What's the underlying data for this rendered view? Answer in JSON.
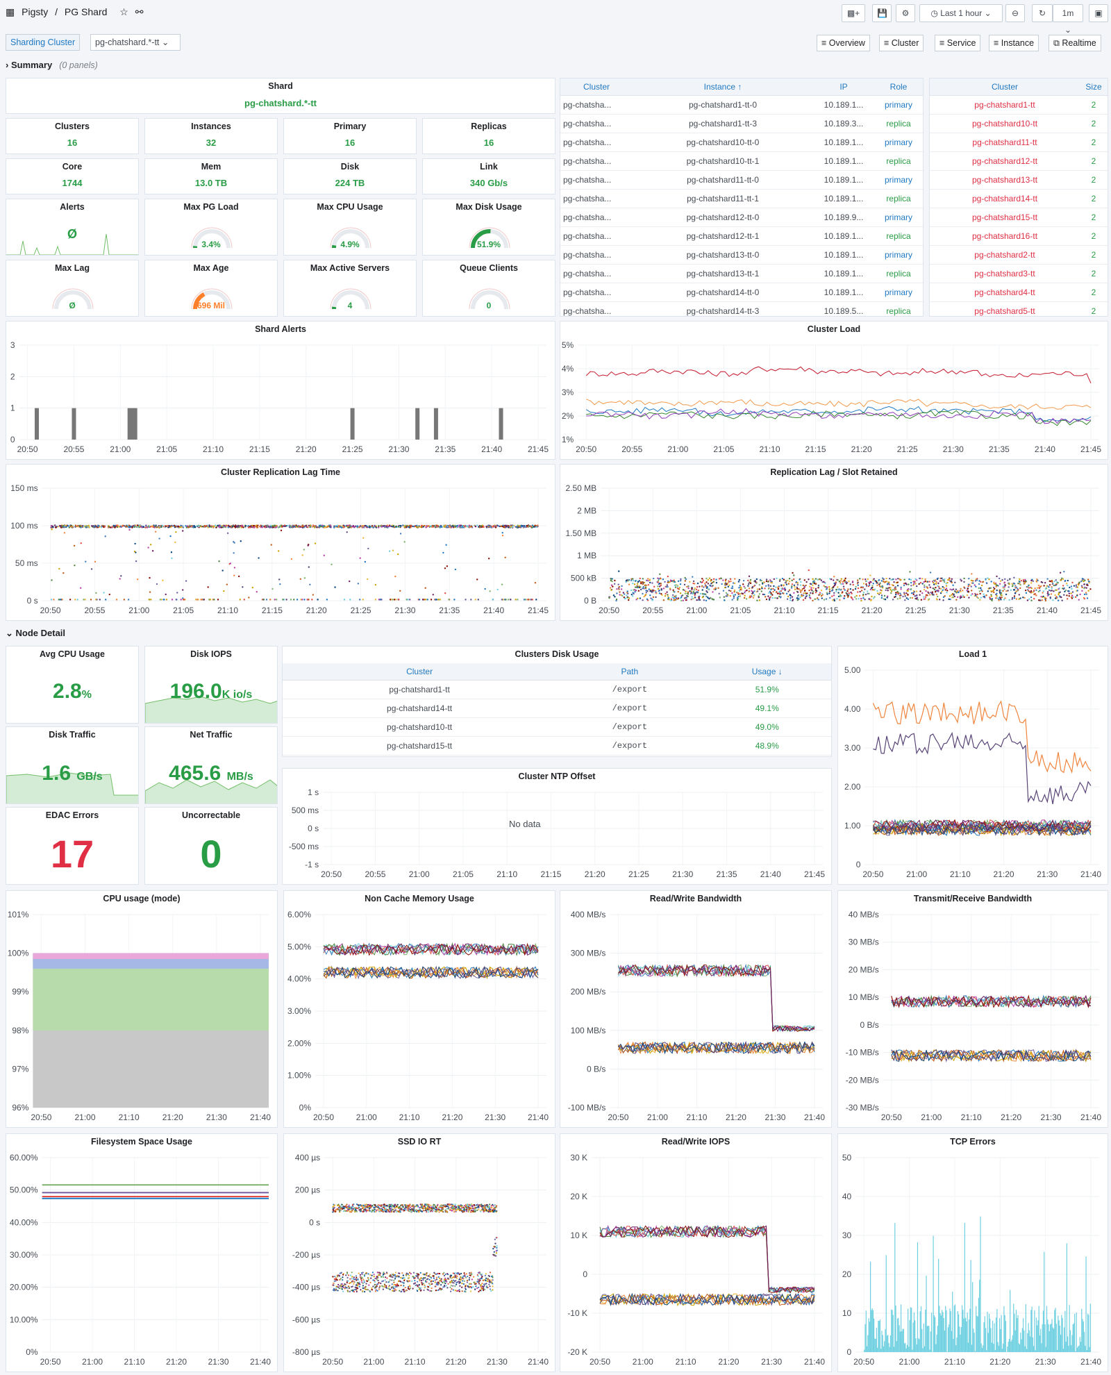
{
  "header": {
    "app": "Pigsty",
    "sep": "/",
    "dashboard": "PG Shard",
    "time_range": "Last 1 hour",
    "refresh": "1m"
  },
  "variables": {
    "label": "Sharding Cluster",
    "value": "pg-chatshard.*-tt"
  },
  "nav": [
    "Overview",
    "Cluster",
    "Service",
    "Instance",
    "Realtime"
  ],
  "rows": {
    "summary": "Summary",
    "summary_note": "(0 panels)",
    "node": "Node Detail"
  },
  "shard": {
    "title": "Shard",
    "value": "pg-chatshard.*-tt"
  },
  "stats": [
    {
      "title": "Clusters",
      "value": "16"
    },
    {
      "title": "Instances",
      "value": "32"
    },
    {
      "title": "Primary",
      "value": "16"
    },
    {
      "title": "Replicas",
      "value": "16"
    },
    {
      "title": "Core",
      "value": "1744"
    },
    {
      "title": "Mem",
      "value": "13.0 TB"
    },
    {
      "title": "Disk",
      "value": "224 TB"
    },
    {
      "title": "Link",
      "value": "340 Gb/s"
    }
  ],
  "gauges": [
    {
      "title": "Alerts",
      "value": "Ø",
      "level": 0
    },
    {
      "title": "Max PG Load",
      "value": "3.4%",
      "level": 0.034
    },
    {
      "title": "Max CPU Usage",
      "value": "4.9%",
      "level": 0.049
    },
    {
      "title": "Max Disk Usage",
      "value": "51.9%",
      "level": 0.519
    },
    {
      "title": "Max Lag",
      "value": "Ø",
      "level": 0
    },
    {
      "title": "Max Age",
      "value": "696 Mil",
      "level": 0.35
    },
    {
      "title": "Max Active Servers",
      "value": "4",
      "level": 0.04
    },
    {
      "title": "Queue Clients",
      "value": "0",
      "level": 0
    }
  ],
  "instances": {
    "headers": [
      "Cluster",
      "Instance ↑",
      "IP",
      "Role"
    ],
    "rows": [
      [
        "pg-chatsha...",
        "pg-chatshard1-tt-0",
        "10.189.1...",
        "primary"
      ],
      [
        "pg-chatsha...",
        "pg-chatshard1-tt-3",
        "10.189.3...",
        "replica"
      ],
      [
        "pg-chatsha...",
        "pg-chatshard10-tt-0",
        "10.189.1...",
        "primary"
      ],
      [
        "pg-chatsha...",
        "pg-chatshard10-tt-1",
        "10.189.1...",
        "replica"
      ],
      [
        "pg-chatsha...",
        "pg-chatshard11-tt-0",
        "10.189.1...",
        "primary"
      ],
      [
        "pg-chatsha...",
        "pg-chatshard11-tt-1",
        "10.189.1...",
        "replica"
      ],
      [
        "pg-chatsha...",
        "pg-chatshard12-tt-0",
        "10.189.9...",
        "primary"
      ],
      [
        "pg-chatsha...",
        "pg-chatshard12-tt-1",
        "10.189.1...",
        "replica"
      ],
      [
        "pg-chatsha...",
        "pg-chatshard13-tt-0",
        "10.189.1...",
        "primary"
      ],
      [
        "pg-chatsha...",
        "pg-chatshard13-tt-1",
        "10.189.1...",
        "replica"
      ],
      [
        "pg-chatsha...",
        "pg-chatshard14-tt-0",
        "10.189.1...",
        "primary"
      ],
      [
        "pg-chatsha...",
        "pg-chatshard14-tt-3",
        "10.189.5...",
        "replica"
      ]
    ]
  },
  "clusters": {
    "headers": [
      "Cluster",
      "Size"
    ],
    "rows": [
      [
        "pg-chatshard1-tt",
        "2"
      ],
      [
        "pg-chatshard10-tt",
        "2"
      ],
      [
        "pg-chatshard11-tt",
        "2"
      ],
      [
        "pg-chatshard12-tt",
        "2"
      ],
      [
        "pg-chatshard13-tt",
        "2"
      ],
      [
        "pg-chatshard14-tt",
        "2"
      ],
      [
        "pg-chatshard15-tt",
        "2"
      ],
      [
        "pg-chatshard16-tt",
        "2"
      ],
      [
        "pg-chatshard2-tt",
        "2"
      ],
      [
        "pg-chatshard3-tt",
        "2"
      ],
      [
        "pg-chatshard4-tt",
        "2"
      ],
      [
        "pg-chatshard5-tt",
        "2"
      ]
    ]
  },
  "node": {
    "avg_cpu": {
      "title": "Avg CPU Usage",
      "value": "2.8",
      "unit": "%"
    },
    "disk_iops": {
      "title": "Disk IOPS",
      "value": "196.0",
      "unit": "K io/s"
    },
    "disk_traffic": {
      "title": "Disk Traffic",
      "value": "1.6",
      "unit": "GB/s"
    },
    "net_traffic": {
      "title": "Net Traffic",
      "value": "465.6",
      "unit": "MB/s"
    },
    "edac": {
      "title": "EDAC Errors",
      "value": "17"
    },
    "uncorrectable": {
      "title": "Uncorrectable",
      "value": "0"
    }
  },
  "disk_usage": {
    "title": "Clusters Disk Usage",
    "headers": [
      "Cluster",
      "Path",
      "Usage ↓"
    ],
    "rows": [
      [
        "pg-chatshard1-tt",
        "/export",
        "51.9%"
      ],
      [
        "pg-chatshard14-tt",
        "/export",
        "49.1%"
      ],
      [
        "pg-chatshard10-tt",
        "/export",
        "49.0%"
      ],
      [
        "pg-chatshard15-tt",
        "/export",
        "48.9%"
      ]
    ]
  },
  "ntp": {
    "title": "Cluster NTP Offset",
    "nodata": "No data"
  },
  "chart_data": [
    {
      "id": "shard_alerts",
      "type": "bar",
      "title": "Shard Alerts",
      "ylim": [
        0,
        3
      ],
      "yticks": [
        "0",
        "1",
        "2",
        "3"
      ],
      "xticks": [
        "20:50",
        "20:55",
        "21:00",
        "21:05",
        "21:10",
        "21:15",
        "21:20",
        "21:25",
        "21:30",
        "21:35",
        "21:40",
        "21:45"
      ],
      "bars": [
        {
          "x": "20:51",
          "y": 1
        },
        {
          "x": "20:55",
          "y": 1
        },
        {
          "x": "21:01",
          "y": 1
        },
        {
          "x": "21:25",
          "y": 1
        },
        {
          "x": "21:32",
          "y": 1
        },
        {
          "x": "21:34",
          "y": 1
        },
        {
          "x": "21:41",
          "y": 1
        }
      ]
    },
    {
      "id": "cluster_load",
      "type": "line",
      "title": "Cluster Load",
      "yticks": [
        "1%",
        "2%",
        "3%",
        "4%",
        "5%"
      ],
      "ylim": [
        1,
        5
      ],
      "xticks": [
        "20:50",
        "20:55",
        "21:00",
        "21:05",
        "21:10",
        "21:15",
        "21:20",
        "21:25",
        "21:30",
        "21:35",
        "21:40",
        "21:45"
      ],
      "series": [
        {
          "values": [
            3.8,
            3.9,
            3.8,
            4.0,
            3.9,
            3.8,
            3.9,
            3.7,
            3.8,
            3.5
          ],
          "color": "#c4162a"
        },
        {
          "values": [
            2.6,
            2.5,
            2.6,
            2.5,
            2.5,
            2.6,
            2.5,
            2.4,
            2.4,
            2.3
          ],
          "color": "#f2994a"
        },
        {
          "values": [
            2.2,
            2.3,
            2.1,
            2.2,
            2.2,
            2.3,
            2.2,
            2.2,
            1.8,
            1.9
          ],
          "color": "#1f78c1"
        },
        {
          "values": [
            2.0,
            2.1,
            2.0,
            2.0,
            2.1,
            2.0,
            2.1,
            2.0,
            1.7,
            1.7
          ],
          "color": "#37872d"
        },
        {
          "values": [
            2.1,
            2.0,
            2.2,
            2.1,
            2.0,
            2.1,
            2.0,
            2.1,
            1.8,
            1.8
          ],
          "color": "#8f3bb8"
        }
      ]
    },
    {
      "id": "repl_lag",
      "type": "scatter",
      "title": "Cluster Replication Lag Time",
      "yticks": [
        "0 s",
        "50 ms",
        "100 ms",
        "150 ms"
      ],
      "xticks": [
        "20:50",
        "20:55",
        "21:00",
        "21:05",
        "21:10",
        "21:15",
        "21:20",
        "21:25",
        "21:30",
        "21:35",
        "21:40",
        "21:45"
      ]
    },
    {
      "id": "slot_retained",
      "type": "scatter",
      "title": "Replication Lag / Slot Retained",
      "yticks": [
        "0 B",
        "500 kB",
        "1 MB",
        "1.50 MB",
        "2 MB",
        "2.50 MB"
      ],
      "xticks": [
        "20:50",
        "20:55",
        "21:00",
        "21:05",
        "21:10",
        "21:15",
        "21:20",
        "21:25",
        "21:30",
        "21:35",
        "21:40",
        "21:45"
      ]
    },
    {
      "id": "load1",
      "type": "line",
      "title": "Load 1",
      "yticks": [
        "0",
        "1.00",
        "2.00",
        "3.00",
        "4.00",
        "5.00"
      ],
      "xticks": [
        "20:50",
        "21:00",
        "21:10",
        "21:20",
        "21:30",
        "21:40"
      ]
    },
    {
      "id": "cpu_mode",
      "type": "area",
      "title": "CPU usage (mode)",
      "yticks": [
        "96%",
        "97%",
        "98%",
        "99%",
        "100%",
        "101%"
      ],
      "xticks": [
        "20:50",
        "21:00",
        "21:10",
        "21:20",
        "21:30",
        "21:40"
      ]
    },
    {
      "id": "mem_usage",
      "type": "line",
      "title": "Non Cache Memory Usage",
      "yticks": [
        "0%",
        "1.00%",
        "2.00%",
        "3.00%",
        "4.00%",
        "5.00%",
        "6.00%"
      ],
      "xticks": [
        "20:50",
        "21:00",
        "21:10",
        "21:20",
        "21:30",
        "21:40"
      ]
    },
    {
      "id": "rw_bw",
      "type": "line",
      "title": "Read/Write Bandwidth",
      "yticks": [
        "-100 MB/s",
        "0 B/s",
        "100 MB/s",
        "200 MB/s",
        "300 MB/s",
        "400 MB/s"
      ],
      "xticks": [
        "20:50",
        "21:00",
        "21:10",
        "21:20",
        "21:30",
        "21:40"
      ]
    },
    {
      "id": "tx_bw",
      "type": "line",
      "title": "Transmit/Receive Bandwidth",
      "yticks": [
        "-30 MB/s",
        "-20 MB/s",
        "-10 MB/s",
        "0 B/s",
        "10 MB/s",
        "20 MB/s",
        "30 MB/s",
        "40 MB/s"
      ],
      "xticks": [
        "20:50",
        "21:00",
        "21:10",
        "21:20",
        "21:30",
        "21:40"
      ]
    },
    {
      "id": "fs_usage",
      "type": "line",
      "title": "Filesystem Space Usage",
      "yticks": [
        "0%",
        "10.00%",
        "20.00%",
        "30.00%",
        "40.00%",
        "50.00%",
        "60.00%"
      ],
      "xticks": [
        "20:50",
        "21:00",
        "21:10",
        "21:20",
        "21:30",
        "21:40"
      ]
    },
    {
      "id": "ssd_rt",
      "type": "scatter",
      "title": "SSD IO RT",
      "yticks": [
        "-800 µs",
        "-600 µs",
        "-400 µs",
        "-200 µs",
        "0 s",
        "200 µs",
        "400 µs"
      ],
      "xticks": [
        "20:50",
        "21:00",
        "21:10",
        "21:20",
        "21:30",
        "21:40"
      ]
    },
    {
      "id": "rw_iops",
      "type": "line",
      "title": "Read/Write IOPS",
      "yticks": [
        "-20 K",
        "-10 K",
        "0",
        "10 K",
        "20 K",
        "30 K"
      ],
      "xticks": [
        "20:50",
        "21:00",
        "21:10",
        "21:20",
        "21:30",
        "21:40"
      ]
    },
    {
      "id": "tcp_err",
      "type": "bar",
      "title": "TCP Errors",
      "yticks": [
        "0",
        "10",
        "20",
        "30",
        "40",
        "50"
      ],
      "xticks": [
        "20:50",
        "21:00",
        "21:10",
        "21:20",
        "21:30",
        "21:40"
      ]
    },
    {
      "id": "ntp_offset",
      "type": "line",
      "title": "Cluster NTP Offset",
      "yticks": [
        "-1 s",
        "-500 ms",
        "0 s",
        "500 ms",
        "1 s"
      ],
      "xticks": [
        "20:50",
        "20:55",
        "21:00",
        "21:05",
        "21:10",
        "21:15",
        "21:20",
        "21:25",
        "21:30",
        "21:35",
        "21:40",
        "21:45"
      ]
    }
  ],
  "colors": {
    "green": "#299c46",
    "red": "#e02f44",
    "blue": "#1f78c1",
    "orange": "#ff7f2a"
  }
}
